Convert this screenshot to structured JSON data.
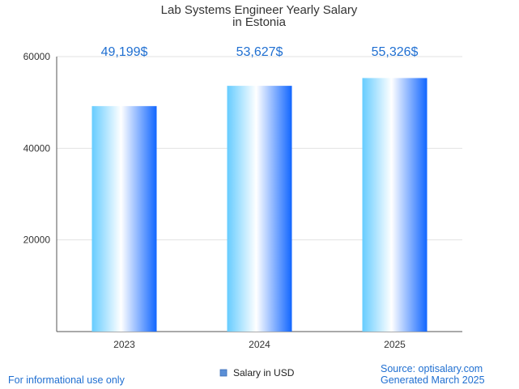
{
  "chart_data": {
    "type": "bar",
    "title": "Lab Systems Engineer Yearly Salary",
    "subtitle": "in Estonia",
    "categories": [
      "2023",
      "2024",
      "2025"
    ],
    "values": [
      49199,
      53627,
      55326
    ],
    "data_labels": [
      "49,199$",
      "53,627$",
      "55,326$"
    ],
    "yticks": [
      20000,
      40000,
      60000
    ],
    "ylim": [
      0,
      60000
    ],
    "xlabel": "",
    "ylabel": "",
    "grid": true,
    "legend": {
      "label": "Salary in USD",
      "position": "bottom-center"
    }
  },
  "footer": {
    "left": "For informational use only",
    "source": "Source: optisalary.com",
    "generated": "Generated March 2025"
  },
  "colors": {
    "bar_edge": "#66ccff",
    "bar_center": "#ffffff",
    "bar_right": "#1166ff",
    "label_blue": "#1f6fd1",
    "legend_swatch": "#5b8fd6"
  }
}
